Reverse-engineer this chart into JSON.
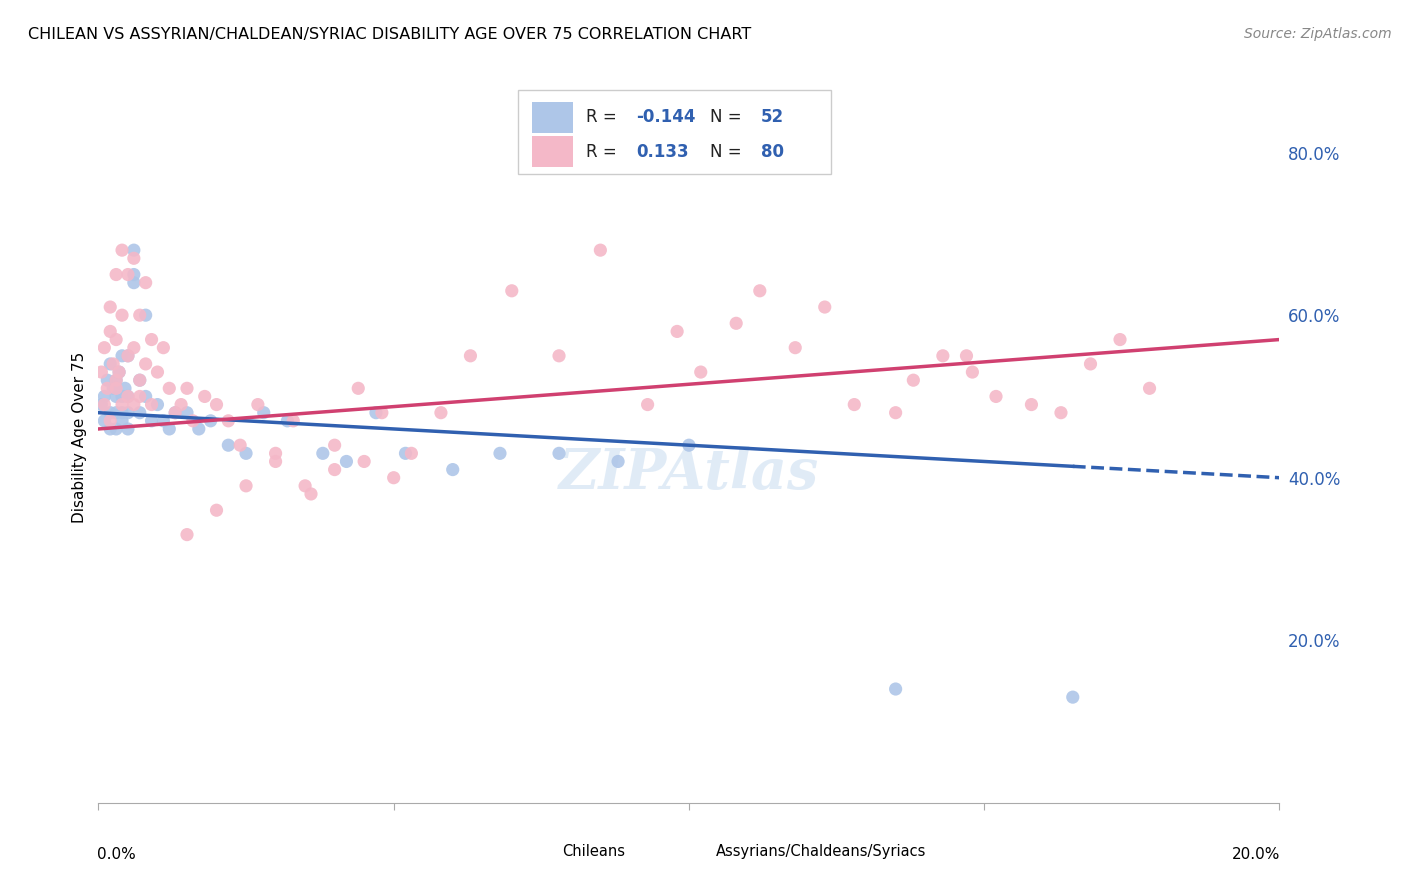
{
  "title": "CHILEAN VS ASSYRIAN/CHALDEAN/SYRIAC DISABILITY AGE OVER 75 CORRELATION CHART",
  "source": "Source: ZipAtlas.com",
  "ylabel": "Disability Age Over 75",
  "legend1_r": "-0.144",
  "legend1_n": "52",
  "legend2_r": "0.133",
  "legend2_n": "80",
  "chilean_color": "#aec6e8",
  "assyrian_color": "#f4b8c8",
  "chilean_line_color": "#3060b0",
  "assyrian_line_color": "#d04070",
  "background_color": "#ffffff",
  "grid_color": "#cccccc",
  "watermark": "ZIPAtlas",
  "chilean_legend_label": "Chileans",
  "assyrian_legend_label": "Assyrians/Chaldeans/Syriacs",
  "xlim": [
    0.0,
    0.2
  ],
  "ylim": [
    0.0,
    0.9
  ],
  "yticks": [
    0.0,
    0.2,
    0.4,
    0.6,
    0.8
  ],
  "ytick_labels": [
    "",
    "20.0%",
    "40.0%",
    "60.0%",
    "80.0%"
  ],
  "xtick_left_label": "0.0%",
  "xtick_right_label": "20.0%",
  "chilean_x": [
    0.0005,
    0.001,
    0.001,
    0.0015,
    0.002,
    0.002,
    0.002,
    0.0025,
    0.003,
    0.003,
    0.003,
    0.003,
    0.0035,
    0.004,
    0.004,
    0.004,
    0.004,
    0.0045,
    0.005,
    0.005,
    0.005,
    0.005,
    0.006,
    0.006,
    0.006,
    0.007,
    0.007,
    0.008,
    0.008,
    0.009,
    0.01,
    0.011,
    0.012,
    0.013,
    0.015,
    0.017,
    0.019,
    0.022,
    0.025,
    0.028,
    0.032,
    0.038,
    0.042,
    0.047,
    0.052,
    0.06,
    0.068,
    0.078,
    0.088,
    0.1,
    0.135,
    0.165
  ],
  "chilean_y": [
    0.49,
    0.5,
    0.47,
    0.52,
    0.48,
    0.46,
    0.54,
    0.51,
    0.5,
    0.48,
    0.52,
    0.46,
    0.53,
    0.5,
    0.48,
    0.55,
    0.47,
    0.51,
    0.5,
    0.48,
    0.46,
    0.55,
    0.64,
    0.68,
    0.65,
    0.48,
    0.52,
    0.5,
    0.6,
    0.47,
    0.49,
    0.47,
    0.46,
    0.48,
    0.48,
    0.46,
    0.47,
    0.44,
    0.43,
    0.48,
    0.47,
    0.43,
    0.42,
    0.48,
    0.43,
    0.41,
    0.43,
    0.43,
    0.42,
    0.44,
    0.14,
    0.13
  ],
  "assyrian_x": [
    0.0005,
    0.001,
    0.001,
    0.0015,
    0.002,
    0.002,
    0.002,
    0.0025,
    0.003,
    0.003,
    0.003,
    0.003,
    0.0035,
    0.004,
    0.004,
    0.004,
    0.005,
    0.005,
    0.005,
    0.006,
    0.006,
    0.006,
    0.007,
    0.007,
    0.007,
    0.008,
    0.008,
    0.009,
    0.009,
    0.01,
    0.011,
    0.012,
    0.013,
    0.014,
    0.015,
    0.016,
    0.018,
    0.02,
    0.022,
    0.024,
    0.027,
    0.03,
    0.033,
    0.036,
    0.04,
    0.044,
    0.048,
    0.053,
    0.058,
    0.063,
    0.07,
    0.078,
    0.085,
    0.093,
    0.102,
    0.112,
    0.123,
    0.135,
    0.147,
    0.158,
    0.168,
    0.178,
    0.143,
    0.152,
    0.163,
    0.173,
    0.148,
    0.138,
    0.128,
    0.118,
    0.108,
    0.098,
    0.03,
    0.025,
    0.02,
    0.015,
    0.035,
    0.04,
    0.045,
    0.05
  ],
  "assyrian_y": [
    0.53,
    0.49,
    0.56,
    0.51,
    0.58,
    0.47,
    0.61,
    0.54,
    0.52,
    0.57,
    0.51,
    0.65,
    0.53,
    0.68,
    0.49,
    0.6,
    0.55,
    0.65,
    0.5,
    0.56,
    0.67,
    0.49,
    0.6,
    0.52,
    0.5,
    0.54,
    0.64,
    0.49,
    0.57,
    0.53,
    0.56,
    0.51,
    0.48,
    0.49,
    0.51,
    0.47,
    0.5,
    0.49,
    0.47,
    0.44,
    0.49,
    0.43,
    0.47,
    0.38,
    0.44,
    0.51,
    0.48,
    0.43,
    0.48,
    0.55,
    0.63,
    0.55,
    0.68,
    0.49,
    0.53,
    0.63,
    0.61,
    0.48,
    0.55,
    0.49,
    0.54,
    0.51,
    0.55,
    0.5,
    0.48,
    0.57,
    0.53,
    0.52,
    0.49,
    0.56,
    0.59,
    0.58,
    0.42,
    0.39,
    0.36,
    0.33,
    0.39,
    0.41,
    0.42,
    0.4
  ]
}
